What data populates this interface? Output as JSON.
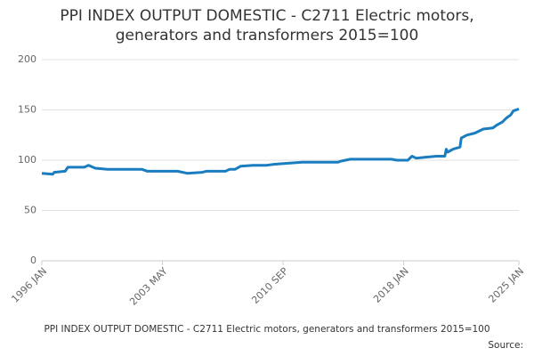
{
  "chart_data": {
    "type": "line",
    "title": [
      "PPI INDEX OUTPUT DOMESTIC - C2711 Electric motors,",
      "generators and transformers 2015=100"
    ],
    "caption": "PPI INDEX OUTPUT DOMESTIC - C2711 Electric motors, generators and transformers 2015=100",
    "source_label": "Source:",
    "x": [
      "1996 JAN",
      "1996 SEP",
      "1996 OCT",
      "1997 JUN",
      "1997 AUG",
      "1998 AUG",
      "1998 NOV",
      "1999 APR",
      "2000 JAN",
      "2002 FEB",
      "2002 JUN",
      "2004 APR",
      "2004 NOV",
      "2005 OCT",
      "2006 JAN",
      "2007 MAR",
      "2007 JUN",
      "2007 OCT",
      "2008 FEB",
      "2008 NOV",
      "2009 SEP",
      "2010 MAR",
      "2011 JAN",
      "2011 NOV",
      "2014 JAN",
      "2014 MAR",
      "2014 OCT",
      "2017 APR",
      "2017 AUG",
      "2018 APR",
      "2018 JUL",
      "2018 OCT",
      "2019 MAY",
      "2020 JAN",
      "2020 JUL",
      "2020 AUG",
      "2020 SEP",
      "2021 JAN",
      "2021 JUN",
      "2021 JUL",
      "2021 NOV",
      "2022 MAY",
      "2022 NOV",
      "2023 JUN",
      "2023 SEP",
      "2024 JAN",
      "2024 APR",
      "2024 JUL",
      "2024 SEP",
      "2025 JAN"
    ],
    "series": [
      {
        "color": "#1a7dc0",
        "values": [
          87,
          86,
          88,
          89,
          93,
          93,
          95,
          92,
          91,
          91,
          89,
          89,
          87,
          88,
          89,
          89,
          91,
          91,
          94,
          95,
          95,
          96,
          97,
          98,
          98,
          99,
          101,
          101,
          100,
          100,
          104,
          102,
          103,
          104,
          104,
          111,
          108,
          111,
          113,
          122,
          125,
          127,
          131,
          132,
          135,
          138,
          142,
          145,
          149,
          151
        ]
      }
    ],
    "xlim": [
      "1996 JAN",
      "2025 JAN"
    ],
    "xticks": [
      "1996 JAN",
      "2003 MAY",
      "2010 SEP",
      "2018 JAN",
      "2025 JAN"
    ],
    "ylim": [
      0,
      200
    ],
    "yticks": [
      0,
      50,
      100,
      150,
      200
    ],
    "grid": true
  }
}
